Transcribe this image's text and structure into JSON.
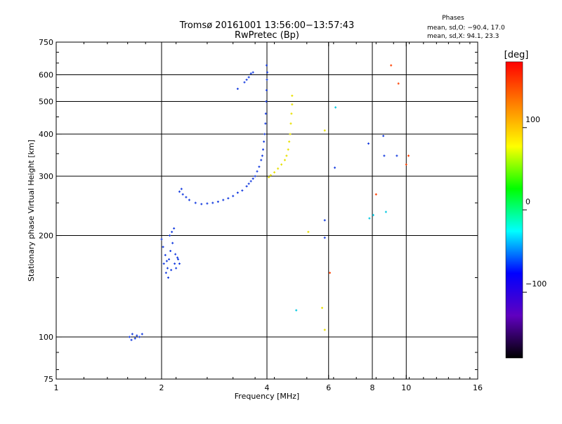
{
  "chart_data": {
    "type": "scatter",
    "title": "Tromsø 20161001 13:56:00−13:57:43",
    "subtitle": "RwPretec (Bp)",
    "xlabel": "Frequency [MHz]",
    "ylabel": "Stationary phase Virtual Height [km]",
    "x_scale": "log2",
    "y_scale": "log",
    "xlim": [
      1,
      16
    ],
    "ylim": [
      75,
      750
    ],
    "x_ticks": [
      1,
      2,
      4,
      6,
      8,
      10,
      16
    ],
    "x_tick_labels": [
      "1",
      "2",
      "4",
      "6",
      "8",
      "10",
      "16"
    ],
    "x_grid_lines": [
      2,
      4,
      6,
      8,
      10
    ],
    "y_ticks": [
      75,
      100,
      200,
      300,
      400,
      500,
      600,
      750
    ],
    "y_tick_labels": [
      "75",
      "100",
      "200",
      "300",
      "400",
      "500",
      "600",
      "750"
    ],
    "y_grid_lines": [
      100,
      200,
      300,
      400,
      500,
      600
    ],
    "grid": true,
    "legend": {
      "title": "Phases",
      "lines": [
        "mean, sd,O: −90.4, 17.0",
        "mean, sd,X:  94.1, 23.3"
      ],
      "position": "top-right"
    },
    "colorbar": {
      "label": "[deg]",
      "range": [
        -180,
        180
      ],
      "ticks": [
        100,
        0,
        -100
      ],
      "tick_labels": [
        "100",
        "0",
        "−100"
      ],
      "colors": [
        "#ff0000",
        "#ff8000",
        "#ffff00",
        "#00ff00",
        "#00ffff",
        "#0000ff",
        "#6000c0",
        "#000000"
      ]
    },
    "series": [
      {
        "name": "O-trace (blue)",
        "color": "#1a40e0",
        "points": [
          [
            1.62,
            100
          ],
          [
            1.65,
            102
          ],
          [
            1.68,
            99
          ],
          [
            1.7,
            101
          ],
          [
            1.73,
            100
          ],
          [
            1.76,
            102
          ],
          [
            1.64,
            98
          ],
          [
            2.0,
            195
          ],
          [
            2.02,
            185
          ],
          [
            2.05,
            175
          ],
          [
            2.03,
            165
          ],
          [
            2.08,
            160
          ],
          [
            2.1,
            170
          ],
          [
            2.12,
            180
          ],
          [
            2.15,
            190
          ],
          [
            2.06,
            155
          ],
          [
            2.18,
            165
          ],
          [
            2.2,
            160
          ],
          [
            2.22,
            172
          ],
          [
            2.25,
            165
          ],
          [
            2.14,
            205
          ],
          [
            2.17,
            210
          ],
          [
            2.11,
            200
          ],
          [
            2.09,
            150
          ],
          [
            2.13,
            158
          ],
          [
            2.19,
            176
          ],
          [
            2.23,
            170
          ],
          [
            2.07,
            168
          ],
          [
            2.25,
            270
          ],
          [
            2.28,
            275
          ],
          [
            2.3,
            265
          ],
          [
            2.35,
            260
          ],
          [
            2.4,
            255
          ],
          [
            2.5,
            250
          ],
          [
            2.6,
            248
          ],
          [
            2.7,
            249
          ],
          [
            2.8,
            250
          ],
          [
            2.9,
            252
          ],
          [
            3.0,
            255
          ],
          [
            3.1,
            258
          ],
          [
            3.2,
            262
          ],
          [
            3.3,
            268
          ],
          [
            3.4,
            272
          ],
          [
            3.5,
            280
          ],
          [
            3.55,
            285
          ],
          [
            3.6,
            290
          ],
          [
            3.65,
            295
          ],
          [
            3.7,
            300
          ],
          [
            3.75,
            310
          ],
          [
            3.8,
            320
          ],
          [
            3.85,
            335
          ],
          [
            3.88,
            345
          ],
          [
            3.9,
            360
          ],
          [
            3.92,
            380
          ],
          [
            3.94,
            400
          ],
          [
            3.96,
            430
          ],
          [
            3.97,
            460
          ],
          [
            3.98,
            500
          ],
          [
            3.99,
            540
          ],
          [
            4.0,
            580
          ],
          [
            4.01,
            610
          ],
          [
            3.99,
            640
          ],
          [
            3.3,
            545
          ],
          [
            3.45,
            570
          ],
          [
            3.5,
            580
          ],
          [
            3.55,
            590
          ],
          [
            3.6,
            605
          ],
          [
            3.65,
            610
          ],
          [
            5.85,
            222
          ],
          [
            5.85,
            197
          ],
          [
            6.25,
            318
          ],
          [
            7.8,
            375
          ],
          [
            8.6,
            395
          ],
          [
            8.65,
            345
          ],
          [
            9.4,
            345
          ]
        ]
      },
      {
        "name": "X-trace (yellow)",
        "color": "#e8e000",
        "points": [
          [
            4.05,
            298
          ],
          [
            4.1,
            302
          ],
          [
            4.2,
            308
          ],
          [
            4.3,
            316
          ],
          [
            4.4,
            325
          ],
          [
            4.5,
            335
          ],
          [
            4.55,
            345
          ],
          [
            4.6,
            360
          ],
          [
            4.63,
            380
          ],
          [
            4.66,
            400
          ],
          [
            4.68,
            430
          ],
          [
            4.7,
            460
          ],
          [
            4.72,
            490
          ],
          [
            4.72,
            520
          ],
          [
            5.25,
            205
          ],
          [
            5.75,
            122
          ],
          [
            5.85,
            105
          ],
          [
            5.85,
            410
          ]
        ]
      },
      {
        "name": "scattered echoes",
        "color": "#ff4000",
        "points": [
          [
            9.05,
            640
          ],
          [
            9.5,
            565
          ],
          [
            10.15,
            345
          ],
          [
            10.0,
            325
          ],
          [
            8.2,
            265
          ],
          [
            6.05,
            155
          ]
        ]
      },
      {
        "name": "scattered echoes (cyan)",
        "color": "#00c8e0",
        "points": [
          [
            4.85,
            120
          ],
          [
            6.28,
            480
          ],
          [
            7.85,
            225
          ],
          [
            8.05,
            230
          ],
          [
            8.75,
            235
          ]
        ]
      }
    ]
  }
}
